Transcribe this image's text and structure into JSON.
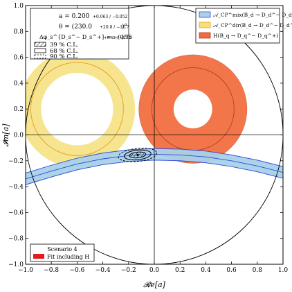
{
  "chart_data": {
    "type": "region-plot",
    "xlabel": "𝓡e[a]",
    "ylabel": "𝓘m[a]",
    "xlim": [
      -1.0,
      1.0
    ],
    "ylim": [
      -1.0,
      1.0
    ],
    "x_ticks": [
      "−1.0",
      "−0.8",
      "−0.6",
      "−0.4",
      "−0.2",
      "0.0",
      "0.2",
      "0.4",
      "0.6",
      "0.8",
      "1.0"
    ],
    "y_ticks": [
      "−1.0",
      "−0.8",
      "−0.6",
      "−0.4",
      "−0.2",
      "0.0",
      "0.2",
      "0.4",
      "0.6",
      "0.8",
      "1.0"
    ],
    "grid": false,
    "colors": {
      "mix_fill": "#a9d1ea",
      "mix_edge": "#2b4bd8",
      "dir_fill": "#f5e07a",
      "dir_edge": "#e8a030",
      "h_fill": "#f26a3c",
      "h_edge": "#b24020",
      "fit": "#e41a1c"
    },
    "params": {
      "a": "a = 0.200",
      "a_err": "+0.063 / −0.052",
      "theta": "θ = (230.0",
      "theta_err": "+20.8 / −16.7",
      "theta_tail": ")°",
      "dphi": "Δφ_s^{D_s^− D_s^+} = −(0.75",
      "dphi_err": "+0.42 / −0.53",
      "dphi_tail": ")°"
    },
    "cl_legend": [
      "39 % C.L.",
      "68 % C.L.",
      "90 % C.L."
    ],
    "series_legend": [
      {
        "label": "𝒜_CP^mix(B_d → D_d^− D_d^+)",
        "color": "#a9d1ea"
      },
      {
        "label": "𝒜_CP^dir(B_d → D_d^− D_d^+)",
        "color": "#f5e07a"
      },
      {
        "label": "H(B_q → D_q^− D_q^+)",
        "color": "#f26a3c"
      }
    ],
    "scenario_label": "Scenario 4",
    "fit_label": "Fit including H",
    "best_fit": {
      "x": -0.129,
      "y": -0.154
    },
    "regions": {
      "unit_circle_radius": 1.0,
      "h_annulus": {
        "center": [
          0.3,
          0.2
        ],
        "r_inner": 0.15,
        "r_outer": 0.42
      },
      "h_mid_circle_radius": 0.32,
      "dir_annulus": {
        "center": [
          -0.6,
          0.2
        ],
        "r_inner": 0.28,
        "r_outer": 0.45
      },
      "dir_mid_circle_radius": 0.36,
      "mix_band": {
        "x": [
          -1.0,
          -0.8,
          -0.6,
          -0.4,
          -0.2,
          0.0,
          0.2,
          0.4,
          0.6,
          0.8,
          1.0
        ],
        "y_center": [
          -0.34,
          -0.28,
          -0.225,
          -0.185,
          -0.16,
          -0.15,
          -0.155,
          -0.17,
          -0.2,
          -0.24,
          -0.29
        ],
        "half_width": 0.045
      },
      "fit_ellipses": [
        {
          "cx": -0.13,
          "cy": -0.155,
          "rx": 0.065,
          "ry": 0.022
        },
        {
          "cx": -0.13,
          "cy": -0.155,
          "rx": 0.105,
          "ry": 0.037
        },
        {
          "cx": -0.13,
          "cy": -0.155,
          "rx": 0.15,
          "ry": 0.05
        }
      ]
    }
  }
}
